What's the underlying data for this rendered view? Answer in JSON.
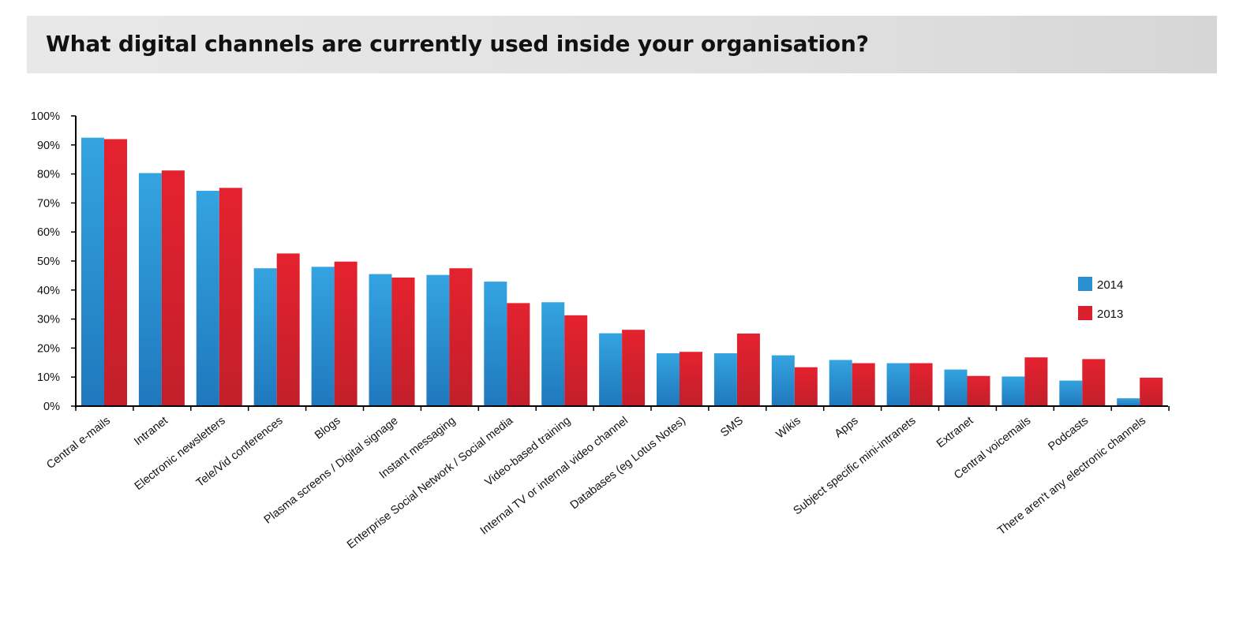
{
  "title": "What digital channels are currently used inside your organisation?",
  "colors": {
    "s2014": "#2a8fd0",
    "s2013": "#d8202e"
  },
  "chart_data": {
    "type": "bar",
    "title": "What digital channels are currently used inside your organisation?",
    "xlabel": "",
    "ylabel": "",
    "ylim": [
      0,
      100
    ],
    "yticks": [
      "0%",
      "10%",
      "20%",
      "30%",
      "40%",
      "50%",
      "60%",
      "70%",
      "80%",
      "90%",
      "100%"
    ],
    "grid": false,
    "legend_position": "right",
    "categories": [
      "Central e-mails",
      "Intranet",
      "Electronic newsletters",
      "Tele/Vid conferences",
      "Blogs",
      "Plasma screens / Digital signage",
      "Instant messaging",
      "Enterprise Social Network / Social media",
      "Video-based training",
      "Internal TV or internal video channel",
      "Databases (eg Lotus Notes)",
      "SMS",
      "Wikis",
      "Apps",
      "Subject specific mini-intranets",
      "Extranet",
      "Central voicemails",
      "Podcasts",
      "There aren't any electronic channels"
    ],
    "series": [
      {
        "name": "2014",
        "values": [
          92.5,
          80.3,
          74.2,
          47.5,
          48.0,
          45.5,
          45.2,
          42.9,
          35.8,
          25.1,
          18.2,
          18.2,
          17.5,
          15.9,
          14.8,
          12.6,
          10.2,
          8.8,
          2.7
        ]
      },
      {
        "name": "2013",
        "values": [
          92.0,
          81.2,
          75.2,
          52.6,
          49.8,
          44.3,
          47.5,
          35.5,
          31.3,
          26.3,
          18.7,
          25.0,
          13.4,
          14.8,
          14.8,
          10.4,
          16.8,
          16.2,
          9.8
        ]
      }
    ]
  }
}
